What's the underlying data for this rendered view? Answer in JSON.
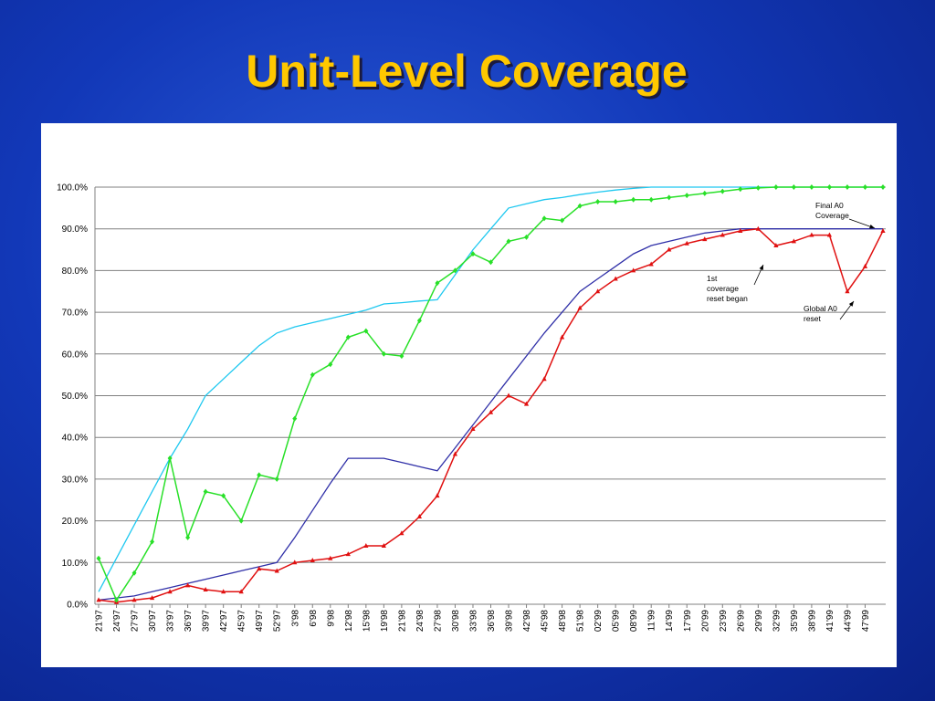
{
  "chart_data": {
    "type": "line",
    "title": "Unit-Level Coverage",
    "categories": [
      "21'97",
      "24'97",
      "27'97",
      "30'97",
      "33'97",
      "36'97",
      "39'97",
      "42'97",
      "45'97",
      "49'97",
      "52'97",
      "3'98",
      "6'98",
      "9'98",
      "12'98",
      "15'98",
      "19'98",
      "21'98",
      "24'98",
      "27'98",
      "30'98",
      "33'98",
      "36'98",
      "39'98",
      "42'98",
      "45'98",
      "48'98",
      "51'98",
      "02'99",
      "05'99",
      "08'99",
      "11'99",
      "14'99",
      "17'99",
      "20'99",
      "23'99",
      "26'99",
      "29'99",
      "32'99",
      "35'99",
      "38'99",
      "41'99",
      "44'99",
      "47'99",
      null
    ],
    "series": [
      {
        "color": "#1ec8f0",
        "marker": false,
        "values": [
          3,
          11,
          19,
          27,
          35,
          42,
          50,
          54,
          58,
          62,
          65,
          66.5,
          67.5,
          68.5,
          69.5,
          70.5,
          72,
          72.3,
          72.7,
          73,
          79,
          85,
          90,
          95,
          96,
          97,
          97.5,
          98.2,
          98.8,
          99.3,
          99.7,
          100,
          100,
          100,
          100,
          100,
          100,
          100,
          100,
          100,
          100,
          100,
          100,
          100,
          100
        ]
      },
      {
        "color": "#3030a8",
        "marker": false,
        "values": [
          1,
          1.5,
          2,
          3,
          4,
          5,
          6,
          7,
          8,
          9,
          10,
          16,
          22.5,
          29,
          35,
          35,
          35,
          34,
          33,
          32,
          37.5,
          43,
          48.5,
          54,
          59.5,
          65,
          70,
          75,
          78,
          81,
          84,
          86,
          87,
          88,
          89,
          89.5,
          90,
          90,
          90,
          90,
          90,
          90,
          90,
          90,
          90
        ]
      },
      {
        "color": "#e01010",
        "marker": "triangle",
        "values": [
          1,
          0.5,
          1,
          1.5,
          3,
          4.5,
          3.5,
          3,
          3,
          8.5,
          8,
          10,
          10.5,
          11,
          12,
          14,
          14,
          17,
          21,
          26,
          36,
          42,
          46,
          50,
          48,
          54,
          64,
          71,
          75,
          78,
          80,
          81.5,
          85,
          86.5,
          87.5,
          88.5,
          89.5,
          90,
          86,
          87,
          88.5,
          88.5,
          75,
          81,
          89.5
        ]
      },
      {
        "color": "#28e028",
        "marker": "diamond",
        "values": [
          11,
          1,
          7.5,
          15,
          35,
          16,
          27,
          26,
          20,
          31,
          30,
          44.5,
          55,
          57.5,
          64,
          65.5,
          60,
          59.5,
          68,
          77,
          80,
          84,
          82,
          87,
          88,
          92.5,
          92,
          95.5,
          96.5,
          96.5,
          97,
          97,
          97.5,
          98,
          98.5,
          99,
          99.5,
          99.8,
          100,
          100,
          100,
          100,
          100,
          100,
          100
        ]
      }
    ],
    "ylim": [
      0,
      100
    ],
    "yticks": [
      {
        "value": 0,
        "label": "0.0%"
      },
      {
        "value": 10,
        "label": "10.0%"
      },
      {
        "value": 20,
        "label": "20.0%"
      },
      {
        "value": 30,
        "label": "30.0%"
      },
      {
        "value": 40,
        "label": "40.0%"
      },
      {
        "value": 50,
        "label": "50.0%"
      },
      {
        "value": 60,
        "label": "60.0%"
      },
      {
        "value": 70,
        "label": "70.0%"
      },
      {
        "value": 80,
        "label": "80.0%"
      },
      {
        "value": 90,
        "label": "90.0%"
      },
      {
        "value": 100,
        "label": "100.0%"
      }
    ],
    "grid": true,
    "annotations": [
      {
        "lines": [
          "Final A0",
          "Coverage"
        ]
      },
      {
        "lines": [
          "1st",
          "coverage",
          "reset began"
        ]
      },
      {
        "lines": [
          "Global A0",
          "reset"
        ]
      }
    ]
  }
}
